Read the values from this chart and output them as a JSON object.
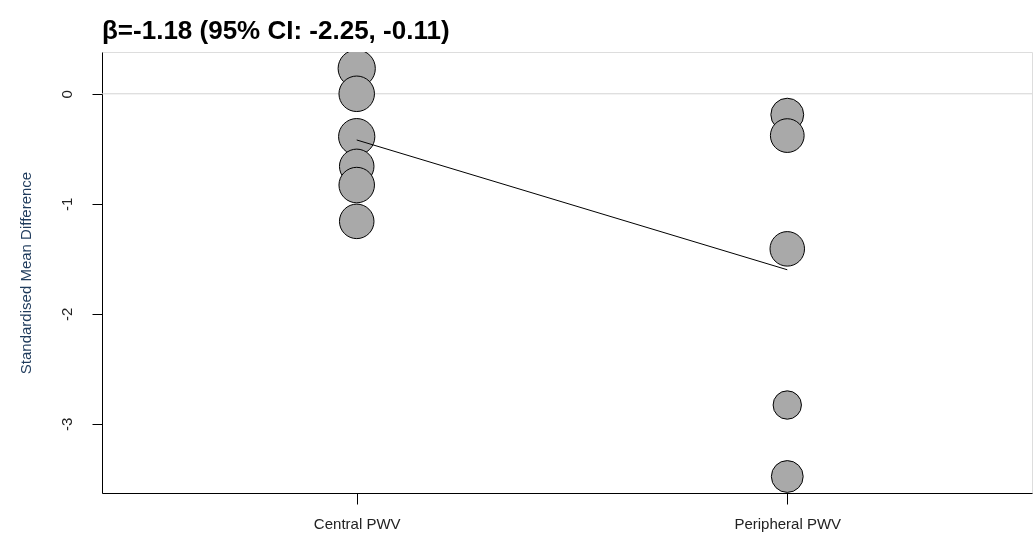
{
  "chart_data": {
    "type": "bubble",
    "title": "β=-1.18 (95% CI: -2.25, -0.11)",
    "ylabel": "Standardised Mean Difference",
    "categories": [
      "Central PWV",
      "Peripheral PWV"
    ],
    "series": [
      {
        "x": [
          "Central PWV",
          "Central PWV",
          "Central PWV",
          "Central PWV",
          "Central PWV",
          "Central PWV",
          "Peripheral PWV",
          "Peripheral PWV",
          "Peripheral PWV",
          "Peripheral PWV",
          "Peripheral PWV"
        ],
        "values": [
          0.23,
          0.0,
          -0.39,
          -0.66,
          -0.83,
          -1.16,
          -0.19,
          -0.38,
          -1.41,
          -2.83,
          -3.48
        ],
        "sizes": [
          1.0,
          0.91,
          0.95,
          0.86,
          0.91,
          0.86,
          0.78,
          0.82,
          0.86,
          0.58,
          0.73
        ],
        "color": "#a9a9a9"
      },
      {
        "type": "line",
        "x": [
          "Central PWV",
          "Peripheral PWV"
        ],
        "values": [
          -0.42,
          -1.6
        ],
        "color": "#000000",
        "marker": "none",
        "line_style": "solid"
      }
    ],
    "ylim": [
      -3.63,
      0.38
    ],
    "yticks": [
      0,
      -1,
      -2,
      -3
    ],
    "ref_lines": [
      {
        "axis": "y",
        "value": 0,
        "color": "#d3d3d3"
      }
    ],
    "grid": false,
    "marker": "circle"
  }
}
